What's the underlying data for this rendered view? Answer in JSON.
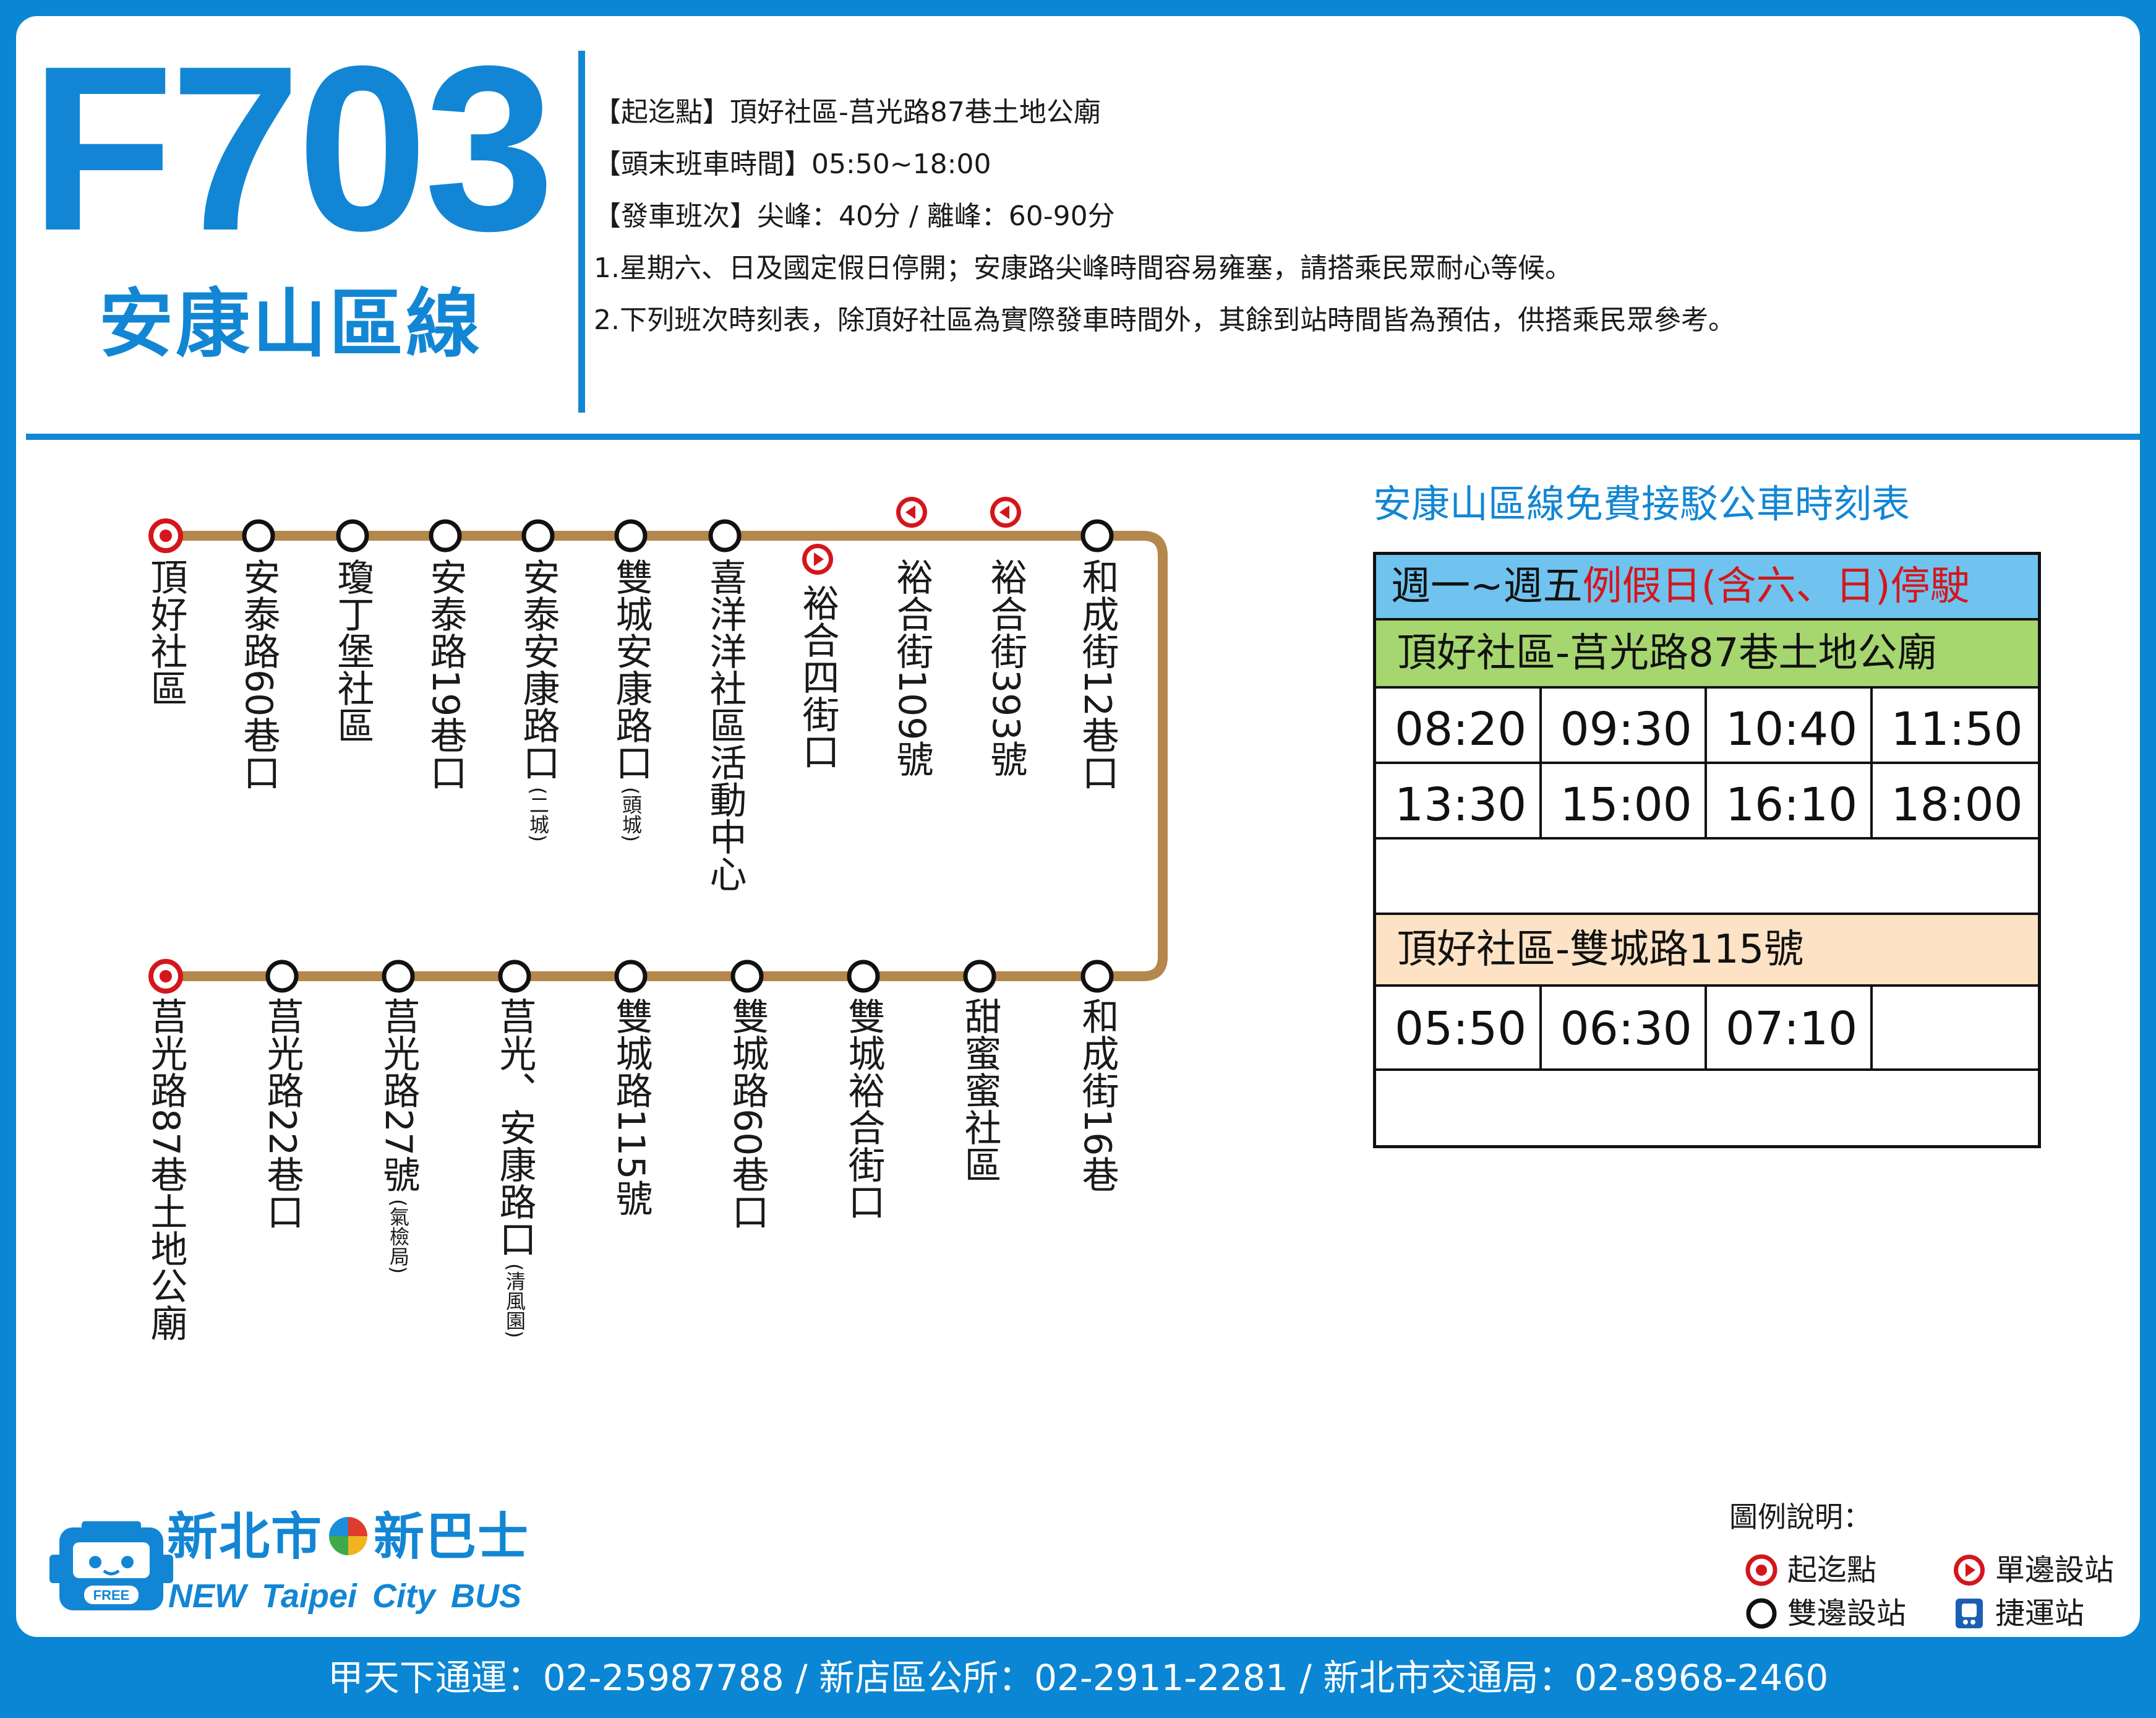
{
  "route": {
    "number": "F703",
    "name": "安康山區線"
  },
  "notes": [
    "【起迄點】頂好社區-莒光路87巷土地公廟",
    "【頭末班車時間】05:50~18:00",
    "【發車班次】尖峰：40分 / 離峰：60-90分",
    "1.星期六、日及國定假日停開；安康路尖峰時間容易雍塞，請搭乘民眾耐心等候。",
    "2.下列班次時刻表，除頂好社區為實際發車時間外，其餘到站時間皆為預估，供搭乘民眾參考。"
  ],
  "stops": {
    "upper": [
      {
        "name": "頂好社區",
        "note": "",
        "marker": "terminal"
      },
      {
        "name": "安泰路60巷口",
        "note": "",
        "marker": "both"
      },
      {
        "name": "瓊丁堡社區",
        "note": "",
        "marker": "both"
      },
      {
        "name": "安泰路19巷口",
        "note": "",
        "marker": "both"
      },
      {
        "name": "安泰安康路口",
        "note": "(二城)",
        "marker": "both"
      },
      {
        "name": "雙城安康路口",
        "note": "(頭城)",
        "marker": "both"
      },
      {
        "name": "喜洋洋社區活動中心",
        "note": "",
        "marker": "both"
      },
      {
        "name": "裕合四街口",
        "note": "",
        "marker": "one-way-right"
      },
      {
        "name": "裕合街109號",
        "note": "",
        "marker": "one-way-left"
      },
      {
        "name": "裕合街393號",
        "note": "",
        "marker": "one-way-left"
      },
      {
        "name": "和成街12巷口",
        "note": "",
        "marker": "both"
      }
    ],
    "lower": [
      {
        "name": "莒光路87巷土地公廟",
        "note": "",
        "marker": "terminal"
      },
      {
        "name": "莒光路22巷口",
        "note": "",
        "marker": "both"
      },
      {
        "name": "莒光路27號",
        "note": "(氣檢局)",
        "marker": "both"
      },
      {
        "name": "莒光、安康路口",
        "note": "(清風園)",
        "marker": "both"
      },
      {
        "name": "雙城路115號",
        "note": "",
        "marker": "both"
      },
      {
        "name": "雙城路60巷口",
        "note": "",
        "marker": "both"
      },
      {
        "name": "雙城裕合街口",
        "note": "",
        "marker": "both"
      },
      {
        "name": "甜蜜蜜社區",
        "note": "",
        "marker": "both"
      },
      {
        "name": "和成街16巷",
        "note": "",
        "marker": "both"
      }
    ]
  },
  "schedule": {
    "title": "安康山區線免費接駁公車時刻表",
    "days_weekday": "週一~週五",
    "days_holiday": "例假日(含六、日)停駛",
    "sections": [
      {
        "header": "頂好社區-莒光路87巷土地公廟",
        "rows": [
          [
            "08:20",
            "09:30",
            "10:40",
            "11:50"
          ],
          [
            "13:30",
            "15:00",
            "16:10",
            "18:00"
          ]
        ]
      },
      {
        "header": "頂好社區-雙城路115號",
        "rows": [
          [
            "05:50",
            "06:30",
            "07:10",
            ""
          ]
        ]
      }
    ]
  },
  "logo": {
    "cn_left": "新北市",
    "cn_right": "新巴士",
    "en": "NEW Taipei City BUS",
    "badge": "FREE"
  },
  "legend": {
    "title": "圖例說明：",
    "items": [
      {
        "label": "起迄點",
        "icon": "terminal-icon"
      },
      {
        "label": "單邊設站",
        "icon": "one-way-stop-icon"
      },
      {
        "label": "雙邊設站",
        "icon": "both-sides-stop-icon"
      },
      {
        "label": "捷運站",
        "icon": "metro-station-icon"
      }
    ]
  },
  "contact": "甲天下通運：02-25987788 / 新店區公所：02-2911-2281 / 新北市交通局：02-8968-2460",
  "colors": {
    "brand_blue": "#1286d4",
    "route_line": "#b4874c",
    "stop_red": "#d4161c",
    "weekday_bg": "#6fc3ee",
    "section_a_bg": "#a6d66f",
    "section_b_bg": "#fde2c5"
  }
}
